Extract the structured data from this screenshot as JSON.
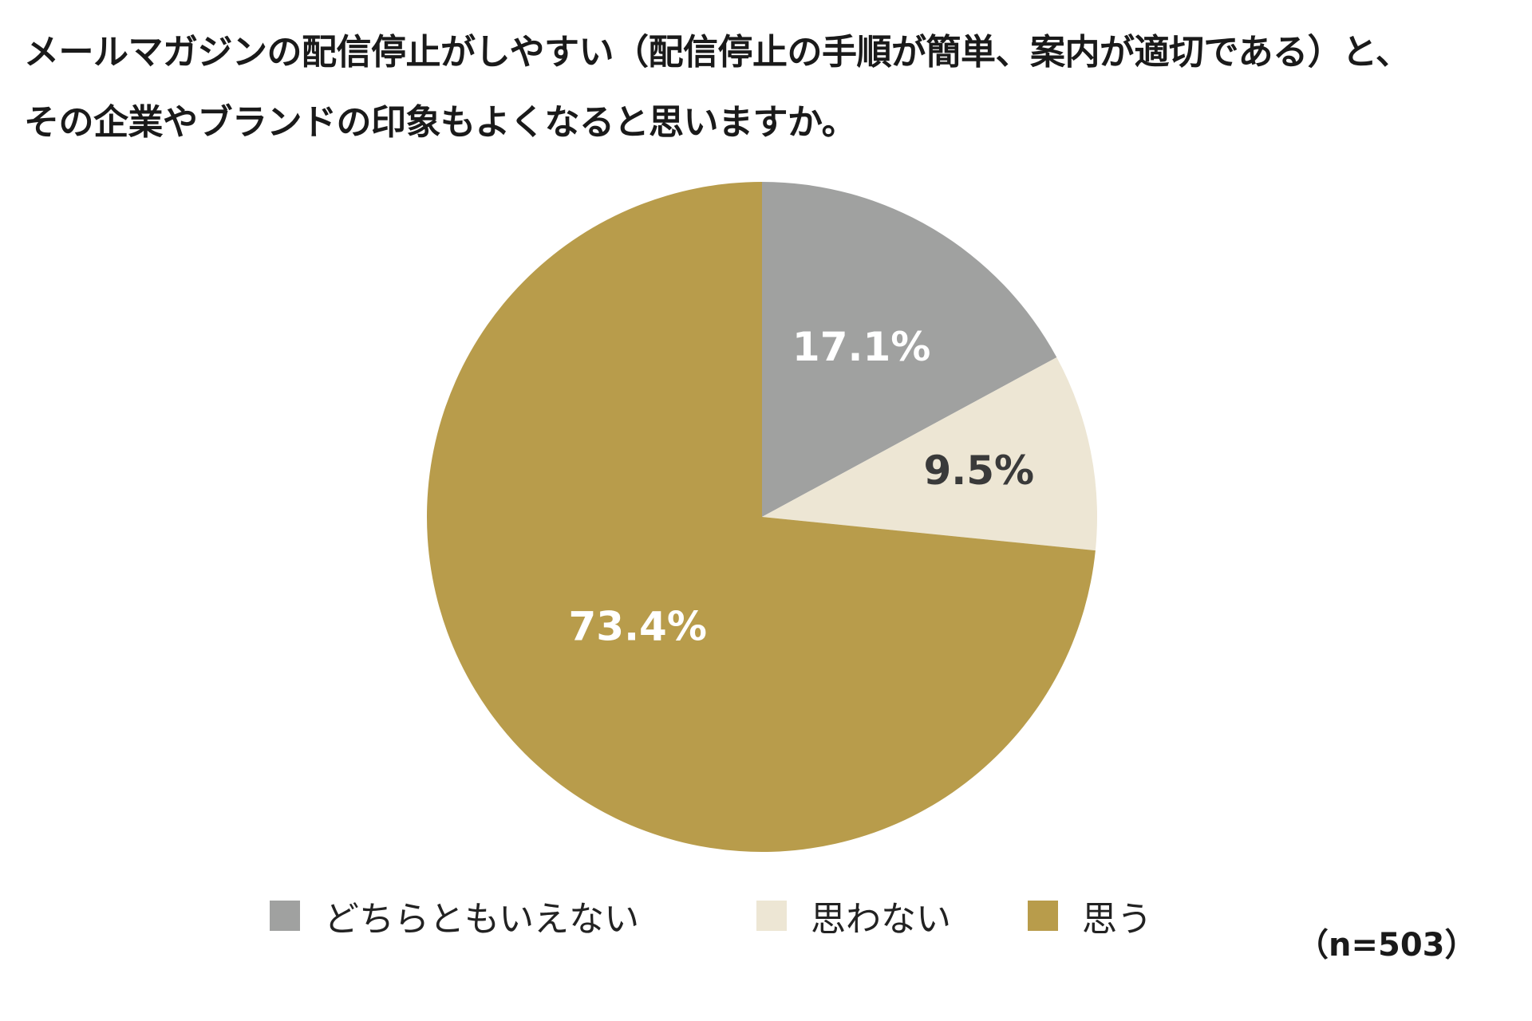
{
  "title": {
    "line1": "メールマガジンの配信停止がしやすい（配信停止の手順が簡単、案内が適切である）と、",
    "line2": "その企業やブランドの印象もよくなると思いますか。"
  },
  "chart_data": {
    "type": "pie",
    "categories": [
      "どちらともいえない",
      "思わない",
      "思う"
    ],
    "values": [
      17.1,
      9.5,
      73.4
    ],
    "value_labels": [
      "17.1%",
      "9.5%",
      "73.4%"
    ],
    "colors": [
      "#a0a1a0",
      "#ede6d4",
      "#b89c4b"
    ],
    "label_colors": [
      "#ffffff",
      "#3a3a3a",
      "#ffffff"
    ],
    "start_angle_deg": 0,
    "direction": "clockwise",
    "legend_position": "bottom",
    "note": "（n=503）"
  }
}
